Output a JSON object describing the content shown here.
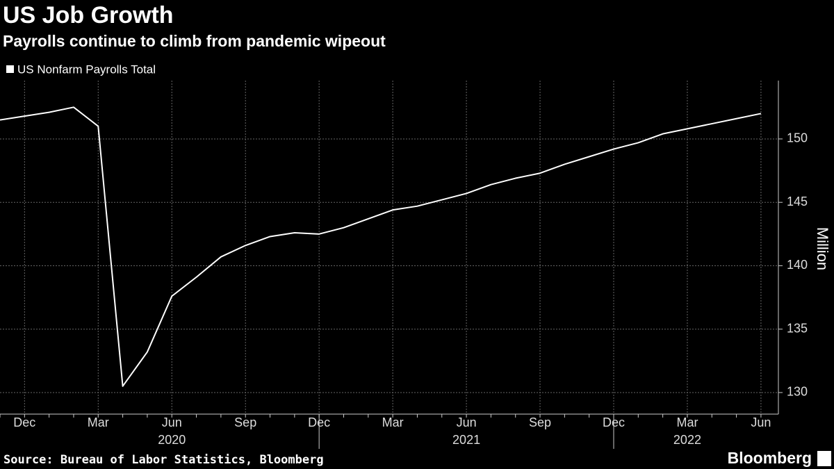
{
  "chart_data": {
    "type": "line",
    "title": "US Job Growth",
    "subtitle": "Payrolls continue to climb from pandemic wipeout",
    "y_label": "Million",
    "source": "Source: Bureau of Labor Statistics, Bloomberg",
    "logo": "Bloomberg",
    "x": [
      "2019-11",
      "2019-12",
      "2020-01",
      "2020-02",
      "2020-03",
      "2020-04",
      "2020-05",
      "2020-06",
      "2020-07",
      "2020-08",
      "2020-09",
      "2020-10",
      "2020-11",
      "2020-12",
      "2021-01",
      "2021-02",
      "2021-03",
      "2021-04",
      "2021-05",
      "2021-06",
      "2021-07",
      "2021-08",
      "2021-09",
      "2021-10",
      "2021-11",
      "2021-12",
      "2022-01",
      "2022-02",
      "2022-03",
      "2022-04",
      "2022-05",
      "2022-06"
    ],
    "series": [
      {
        "name": "US Nonfarm Payrolls Total",
        "color": "#ffffff",
        "values": [
          151.5,
          151.8,
          152.1,
          152.5,
          151.0,
          130.5,
          133.2,
          137.6,
          139.1,
          140.7,
          141.6,
          142.3,
          142.6,
          142.5,
          143.0,
          143.7,
          144.4,
          144.7,
          145.2,
          145.7,
          146.4,
          146.9,
          147.3,
          148.0,
          148.6,
          149.2,
          149.7,
          150.4,
          150.8,
          151.2,
          151.6,
          152.0
        ]
      }
    ],
    "xticks": [
      {
        "value": "2019-12",
        "label": "Dec"
      },
      {
        "value": "2020-03",
        "label": "Mar"
      },
      {
        "value": "2020-06",
        "label": "Jun"
      },
      {
        "value": "2020-09",
        "label": "Sep"
      },
      {
        "value": "2020-12",
        "label": "Dec"
      },
      {
        "value": "2021-03",
        "label": "Mar"
      },
      {
        "value": "2021-06",
        "label": "Jun"
      },
      {
        "value": "2021-09",
        "label": "Sep"
      },
      {
        "value": "2021-12",
        "label": "Dec"
      },
      {
        "value": "2022-03",
        "label": "Mar"
      },
      {
        "value": "2022-06",
        "label": "Jun"
      }
    ],
    "year_labels": [
      {
        "value": "2020-06",
        "label": "2020"
      },
      {
        "value": "2021-06",
        "label": "2021"
      },
      {
        "value": "2022-03",
        "label": "2022"
      }
    ],
    "ylim": [
      128.3,
      154.6
    ],
    "yticks": [
      130,
      135,
      140,
      145,
      150
    ],
    "grid": true
  }
}
